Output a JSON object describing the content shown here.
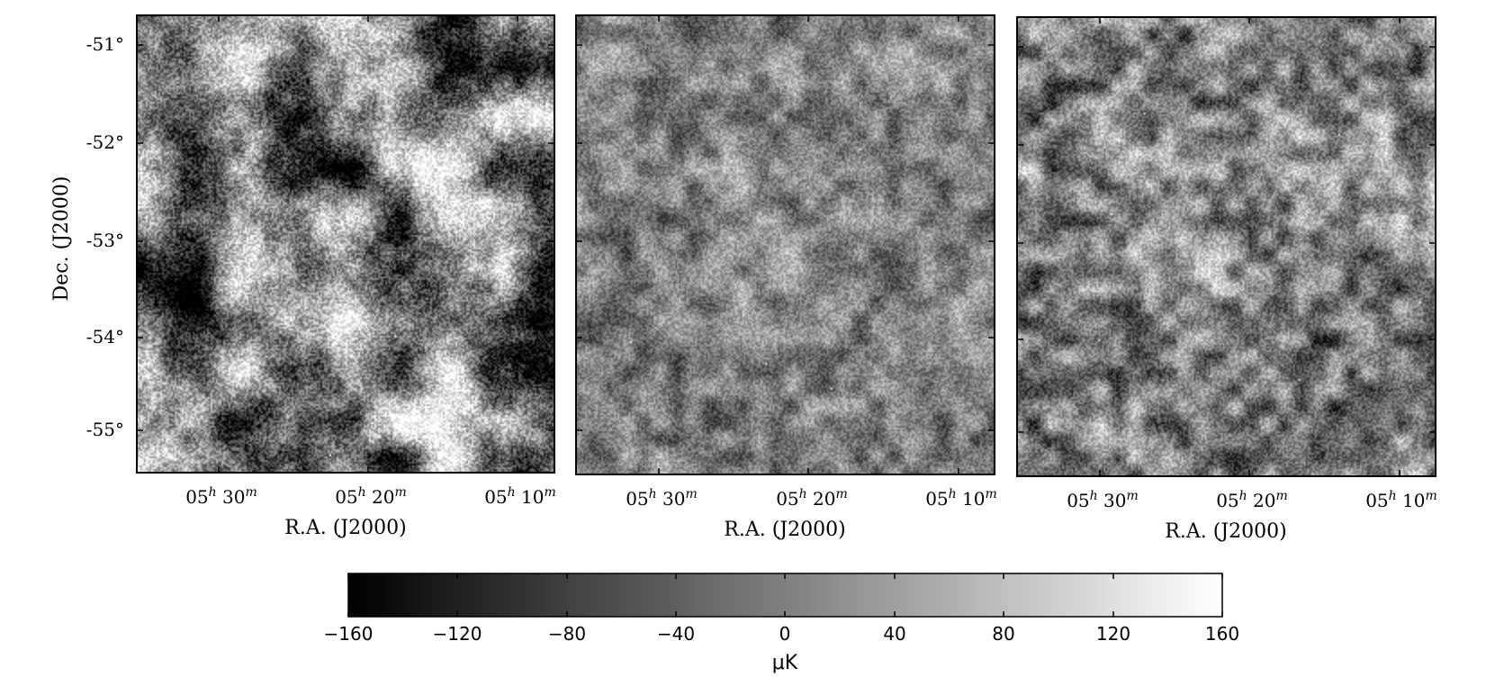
{
  "figure": {
    "ylabel": "Dec. (J2000)",
    "y_ticks": [
      "-51°",
      "-52°",
      "-53°",
      "-54°",
      "-55°"
    ],
    "panels": [
      {
        "xlabel": "R.A. (J2000)",
        "x_ticks": [
          {
            "h": "05",
            "m": "30"
          },
          {
            "h": "05",
            "m": "20"
          },
          {
            "h": "05",
            "m": "10"
          }
        ],
        "noise": {
          "seed": 11,
          "large_scale_amp": 1.0,
          "mid_scale_amp": 0.35,
          "pixel_noise_amp": 0.45,
          "contrast": 1.35
        }
      },
      {
        "xlabel": "R.A. (J2000)",
        "x_ticks": [
          {
            "h": "05",
            "m": "30"
          },
          {
            "h": "05",
            "m": "20"
          },
          {
            "h": "05",
            "m": "10"
          }
        ],
        "noise": {
          "seed": 37,
          "large_scale_amp": 0.25,
          "mid_scale_amp": 0.6,
          "pixel_noise_amp": 0.55,
          "contrast": 0.75
        }
      },
      {
        "xlabel": "R.A. (J2000)",
        "x_ticks": [
          {
            "h": "05",
            "m": "30"
          },
          {
            "h": "05",
            "m": "20"
          },
          {
            "h": "05",
            "m": "10"
          }
        ],
        "noise": {
          "seed": 73,
          "large_scale_amp": 0.3,
          "mid_scale_amp": 0.75,
          "pixel_noise_amp": 0.5,
          "contrast": 0.9
        }
      }
    ],
    "colorbar": {
      "ticks": [
        "−160",
        "−120",
        "−80",
        "−40",
        "0",
        "40",
        "80",
        "120",
        "160"
      ],
      "label": "μK",
      "range": [
        -160,
        160
      ],
      "colormap": "grayscale"
    }
  },
  "colors": {
    "frame": "#000000",
    "text": "#000000",
    "background": "#ffffff"
  }
}
